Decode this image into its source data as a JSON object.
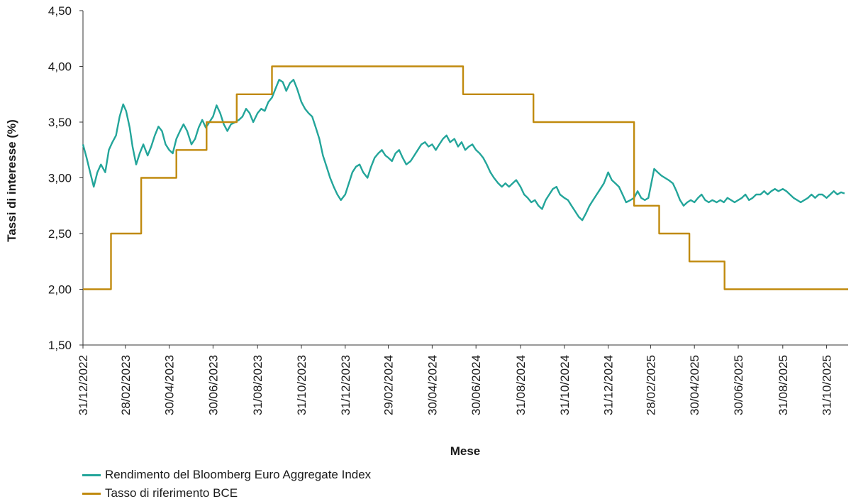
{
  "chart_data": {
    "type": "line",
    "title": "",
    "xlabel": "Mese",
    "ylabel": "Tassi di interesse (%)",
    "ylim": [
      1.5,
      4.5
    ],
    "yticks": [
      "1,50",
      "2,00",
      "2,50",
      "3,00",
      "3,50",
      "4,00",
      "4,50"
    ],
    "xlim": [
      "2022-12-31",
      "2025-11-30"
    ],
    "x_tick_labels": [
      "31/12/2022",
      "28/02/2023",
      "30/04/2023",
      "30/06/2023",
      "31/08/2023",
      "31/10/2023",
      "31/12/2023",
      "29/02/2024",
      "30/04/2024",
      "30/06/2024",
      "31/08/2024",
      "31/10/2024",
      "31/12/2024",
      "28/02/2025",
      "30/04/2025",
      "30/06/2025",
      "31/08/2025",
      "31/10/2025"
    ],
    "x_tick_dates": [
      "2022-12-31",
      "2023-02-28",
      "2023-04-30",
      "2023-06-30",
      "2023-08-31",
      "2023-10-31",
      "2023-12-31",
      "2024-02-29",
      "2024-04-30",
      "2024-06-30",
      "2024-08-31",
      "2024-10-31",
      "2024-12-31",
      "2025-02-28",
      "2025-04-30",
      "2025-06-30",
      "2025-08-31",
      "2025-10-31"
    ],
    "legend_position": "bottom-left",
    "series": [
      {
        "name": "Rendimento del Bloomberg Euro Aggregate Index",
        "color": "#23a59a",
        "points": [
          [
            "2022-12-31",
            3.3
          ],
          [
            "2023-01-05",
            3.18
          ],
          [
            "2023-01-10",
            3.05
          ],
          [
            "2023-01-15",
            2.92
          ],
          [
            "2023-01-20",
            3.05
          ],
          [
            "2023-01-25",
            3.12
          ],
          [
            "2023-01-31",
            3.05
          ],
          [
            "2023-02-05",
            3.25
          ],
          [
            "2023-02-10",
            3.32
          ],
          [
            "2023-02-15",
            3.38
          ],
          [
            "2023-02-20",
            3.55
          ],
          [
            "2023-02-25",
            3.66
          ],
          [
            "2023-03-01",
            3.6
          ],
          [
            "2023-03-06",
            3.45
          ],
          [
            "2023-03-10",
            3.28
          ],
          [
            "2023-03-15",
            3.12
          ],
          [
            "2023-03-20",
            3.22
          ],
          [
            "2023-03-25",
            3.3
          ],
          [
            "2023-03-31",
            3.2
          ],
          [
            "2023-04-05",
            3.28
          ],
          [
            "2023-04-10",
            3.38
          ],
          [
            "2023-04-15",
            3.46
          ],
          [
            "2023-04-20",
            3.42
          ],
          [
            "2023-04-25",
            3.3
          ],
          [
            "2023-04-30",
            3.25
          ],
          [
            "2023-05-05",
            3.22
          ],
          [
            "2023-05-10",
            3.35
          ],
          [
            "2023-05-15",
            3.42
          ],
          [
            "2023-05-20",
            3.48
          ],
          [
            "2023-05-25",
            3.42
          ],
          [
            "2023-05-31",
            3.3
          ],
          [
            "2023-06-05",
            3.35
          ],
          [
            "2023-06-10",
            3.45
          ],
          [
            "2023-06-15",
            3.52
          ],
          [
            "2023-06-20",
            3.45
          ],
          [
            "2023-06-25",
            3.5
          ],
          [
            "2023-06-30",
            3.55
          ],
          [
            "2023-07-05",
            3.65
          ],
          [
            "2023-07-10",
            3.58
          ],
          [
            "2023-07-15",
            3.48
          ],
          [
            "2023-07-20",
            3.42
          ],
          [
            "2023-07-25",
            3.48
          ],
          [
            "2023-07-31",
            3.5
          ],
          [
            "2023-08-05",
            3.52
          ],
          [
            "2023-08-10",
            3.55
          ],
          [
            "2023-08-15",
            3.62
          ],
          [
            "2023-08-20",
            3.58
          ],
          [
            "2023-08-25",
            3.5
          ],
          [
            "2023-08-31",
            3.58
          ],
          [
            "2023-09-05",
            3.62
          ],
          [
            "2023-09-10",
            3.6
          ],
          [
            "2023-09-15",
            3.68
          ],
          [
            "2023-09-20",
            3.72
          ],
          [
            "2023-09-25",
            3.8
          ],
          [
            "2023-09-30",
            3.88
          ],
          [
            "2023-10-05",
            3.86
          ],
          [
            "2023-10-10",
            3.78
          ],
          [
            "2023-10-15",
            3.85
          ],
          [
            "2023-10-20",
            3.88
          ],
          [
            "2023-10-25",
            3.8
          ],
          [
            "2023-10-31",
            3.68
          ],
          [
            "2023-11-05",
            3.62
          ],
          [
            "2023-11-10",
            3.58
          ],
          [
            "2023-11-15",
            3.55
          ],
          [
            "2023-11-20",
            3.45
          ],
          [
            "2023-11-25",
            3.35
          ],
          [
            "2023-11-30",
            3.2
          ],
          [
            "2023-12-05",
            3.1
          ],
          [
            "2023-12-10",
            3.0
          ],
          [
            "2023-12-15",
            2.92
          ],
          [
            "2023-12-20",
            2.85
          ],
          [
            "2023-12-25",
            2.8
          ],
          [
            "2023-12-31",
            2.85
          ],
          [
            "2024-01-05",
            2.95
          ],
          [
            "2024-01-10",
            3.05
          ],
          [
            "2024-01-15",
            3.1
          ],
          [
            "2024-01-20",
            3.12
          ],
          [
            "2024-01-25",
            3.05
          ],
          [
            "2024-01-31",
            3.0
          ],
          [
            "2024-02-05",
            3.1
          ],
          [
            "2024-02-10",
            3.18
          ],
          [
            "2024-02-15",
            3.22
          ],
          [
            "2024-02-20",
            3.25
          ],
          [
            "2024-02-25",
            3.2
          ],
          [
            "2024-02-29",
            3.18
          ],
          [
            "2024-03-05",
            3.15
          ],
          [
            "2024-03-10",
            3.22
          ],
          [
            "2024-03-15",
            3.25
          ],
          [
            "2024-03-20",
            3.18
          ],
          [
            "2024-03-25",
            3.12
          ],
          [
            "2024-03-31",
            3.15
          ],
          [
            "2024-04-05",
            3.2
          ],
          [
            "2024-04-10",
            3.25
          ],
          [
            "2024-04-15",
            3.3
          ],
          [
            "2024-04-20",
            3.32
          ],
          [
            "2024-04-25",
            3.28
          ],
          [
            "2024-04-30",
            3.3
          ],
          [
            "2024-05-05",
            3.25
          ],
          [
            "2024-05-10",
            3.3
          ],
          [
            "2024-05-15",
            3.35
          ],
          [
            "2024-05-20",
            3.38
          ],
          [
            "2024-05-25",
            3.32
          ],
          [
            "2024-05-31",
            3.35
          ],
          [
            "2024-06-05",
            3.28
          ],
          [
            "2024-06-10",
            3.32
          ],
          [
            "2024-06-15",
            3.25
          ],
          [
            "2024-06-20",
            3.28
          ],
          [
            "2024-06-25",
            3.3
          ],
          [
            "2024-06-30",
            3.25
          ],
          [
            "2024-07-05",
            3.22
          ],
          [
            "2024-07-10",
            3.18
          ],
          [
            "2024-07-15",
            3.12
          ],
          [
            "2024-07-20",
            3.05
          ],
          [
            "2024-07-25",
            3.0
          ],
          [
            "2024-07-31",
            2.95
          ],
          [
            "2024-08-05",
            2.92
          ],
          [
            "2024-08-10",
            2.95
          ],
          [
            "2024-08-15",
            2.92
          ],
          [
            "2024-08-20",
            2.95
          ],
          [
            "2024-08-25",
            2.98
          ],
          [
            "2024-08-31",
            2.92
          ],
          [
            "2024-09-05",
            2.85
          ],
          [
            "2024-09-10",
            2.82
          ],
          [
            "2024-09-15",
            2.78
          ],
          [
            "2024-09-20",
            2.8
          ],
          [
            "2024-09-25",
            2.75
          ],
          [
            "2024-09-30",
            2.72
          ],
          [
            "2024-10-05",
            2.8
          ],
          [
            "2024-10-10",
            2.85
          ],
          [
            "2024-10-15",
            2.9
          ],
          [
            "2024-10-20",
            2.92
          ],
          [
            "2024-10-25",
            2.85
          ],
          [
            "2024-10-31",
            2.82
          ],
          [
            "2024-11-05",
            2.8
          ],
          [
            "2024-11-10",
            2.75
          ],
          [
            "2024-11-15",
            2.7
          ],
          [
            "2024-11-20",
            2.65
          ],
          [
            "2024-11-25",
            2.62
          ],
          [
            "2024-11-30",
            2.68
          ],
          [
            "2024-12-05",
            2.75
          ],
          [
            "2024-12-10",
            2.8
          ],
          [
            "2024-12-15",
            2.85
          ],
          [
            "2024-12-20",
            2.9
          ],
          [
            "2024-12-25",
            2.95
          ],
          [
            "2024-12-31",
            3.05
          ],
          [
            "2025-01-05",
            2.98
          ],
          [
            "2025-01-10",
            2.95
          ],
          [
            "2025-01-15",
            2.92
          ],
          [
            "2025-01-20",
            2.85
          ],
          [
            "2025-01-25",
            2.78
          ],
          [
            "2025-01-31",
            2.8
          ],
          [
            "2025-02-05",
            2.82
          ],
          [
            "2025-02-10",
            2.88
          ],
          [
            "2025-02-15",
            2.82
          ],
          [
            "2025-02-20",
            2.8
          ],
          [
            "2025-02-25",
            2.82
          ],
          [
            "2025-03-01",
            2.95
          ],
          [
            "2025-03-05",
            3.08
          ],
          [
            "2025-03-10",
            3.05
          ],
          [
            "2025-03-15",
            3.02
          ],
          [
            "2025-03-20",
            3.0
          ],
          [
            "2025-03-25",
            2.98
          ],
          [
            "2025-03-31",
            2.95
          ],
          [
            "2025-04-05",
            2.88
          ],
          [
            "2025-04-10",
            2.8
          ],
          [
            "2025-04-15",
            2.75
          ],
          [
            "2025-04-20",
            2.78
          ],
          [
            "2025-04-25",
            2.8
          ],
          [
            "2025-04-30",
            2.78
          ],
          [
            "2025-05-05",
            2.82
          ],
          [
            "2025-05-10",
            2.85
          ],
          [
            "2025-05-15",
            2.8
          ],
          [
            "2025-05-20",
            2.78
          ],
          [
            "2025-05-25",
            2.8
          ],
          [
            "2025-05-31",
            2.78
          ],
          [
            "2025-06-05",
            2.8
          ],
          [
            "2025-06-10",
            2.78
          ],
          [
            "2025-06-15",
            2.82
          ],
          [
            "2025-06-20",
            2.8
          ],
          [
            "2025-06-25",
            2.78
          ],
          [
            "2025-06-30",
            2.8
          ],
          [
            "2025-07-05",
            2.82
          ],
          [
            "2025-07-10",
            2.85
          ],
          [
            "2025-07-15",
            2.8
          ],
          [
            "2025-07-20",
            2.82
          ],
          [
            "2025-07-25",
            2.85
          ],
          [
            "2025-07-31",
            2.85
          ],
          [
            "2025-08-05",
            2.88
          ],
          [
            "2025-08-10",
            2.85
          ],
          [
            "2025-08-15",
            2.88
          ],
          [
            "2025-08-20",
            2.9
          ],
          [
            "2025-08-25",
            2.88
          ],
          [
            "2025-08-31",
            2.9
          ],
          [
            "2025-09-05",
            2.88
          ],
          [
            "2025-09-10",
            2.85
          ],
          [
            "2025-09-15",
            2.82
          ],
          [
            "2025-09-20",
            2.8
          ],
          [
            "2025-09-25",
            2.78
          ],
          [
            "2025-09-30",
            2.8
          ],
          [
            "2025-10-05",
            2.82
          ],
          [
            "2025-10-10",
            2.85
          ],
          [
            "2025-10-15",
            2.82
          ],
          [
            "2025-10-20",
            2.85
          ],
          [
            "2025-10-25",
            2.85
          ],
          [
            "2025-10-31",
            2.82
          ],
          [
            "2025-11-05",
            2.85
          ],
          [
            "2025-11-10",
            2.88
          ],
          [
            "2025-11-15",
            2.85
          ],
          [
            "2025-11-20",
            2.87
          ],
          [
            "2025-11-25",
            2.86
          ]
        ]
      },
      {
        "name": "Tasso di riferimento BCE",
        "color": "#c08a0e",
        "step": true,
        "points": [
          [
            "2022-12-31",
            2.0
          ],
          [
            "2023-02-08",
            2.5
          ],
          [
            "2023-03-22",
            3.0
          ],
          [
            "2023-05-10",
            3.25
          ],
          [
            "2023-06-21",
            3.5
          ],
          [
            "2023-08-02",
            3.75
          ],
          [
            "2023-09-20",
            4.0
          ],
          [
            "2024-06-12",
            3.75
          ],
          [
            "2024-09-18",
            3.5
          ],
          [
            "2024-12-31",
            3.5
          ],
          [
            "2025-02-05",
            2.75
          ],
          [
            "2025-03-12",
            2.5
          ],
          [
            "2025-04-23",
            2.25
          ],
          [
            "2025-06-11",
            2.0
          ],
          [
            "2025-11-30",
            2.0
          ]
        ]
      }
    ]
  }
}
